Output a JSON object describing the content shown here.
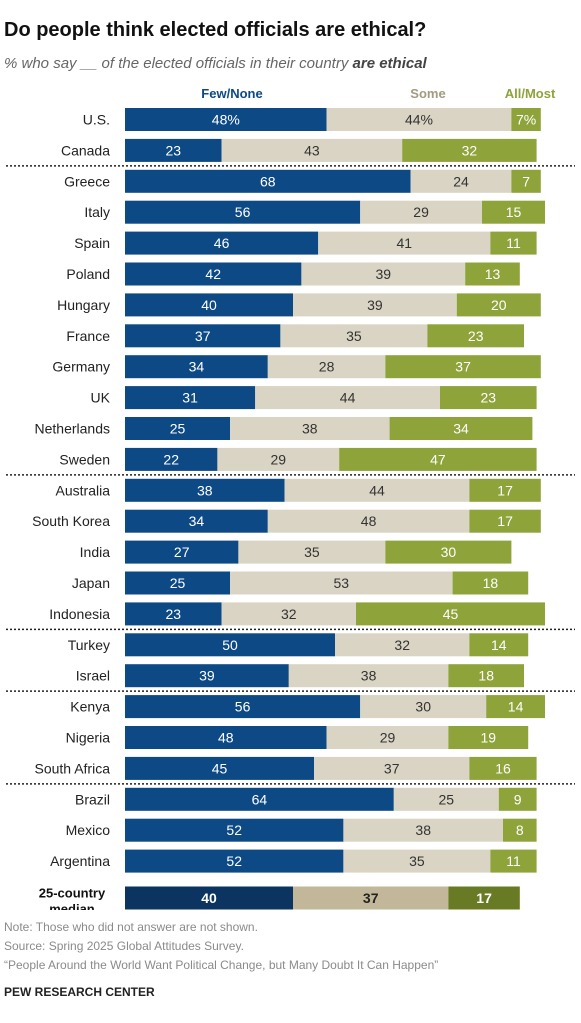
{
  "title": "Do people think elected officials are ethical?",
  "subtitle_pre": "% who say __ of the elected officials in their country ",
  "subtitle_em": "are ethical",
  "colors": {
    "few": "#0d4a85",
    "some": "#d9d4c3",
    "all": "#8ea33a",
    "few_median": "#0b3560",
    "some_median": "#c2b899",
    "all_median": "#687a24",
    "few_label": "#0d4a85",
    "some_label": "#a39a7f",
    "all_label": "#8ea33a"
  },
  "chart_data": {
    "type": "bar",
    "orientation": "horizontal",
    "stacked": true,
    "categories": [
      "U.S.",
      "Canada",
      "Greece",
      "Italy",
      "Spain",
      "Poland",
      "Hungary",
      "France",
      "Germany",
      "UK",
      "Netherlands",
      "Sweden",
      "Australia",
      "South Korea",
      "India",
      "Japan",
      "Indonesia",
      "Turkey",
      "Israel",
      "Kenya",
      "Nigeria",
      "South Africa",
      "Brazil",
      "Mexico",
      "Argentina"
    ],
    "series": [
      {
        "name": "Few/None",
        "values": [
          48,
          23,
          68,
          56,
          46,
          42,
          40,
          37,
          34,
          31,
          25,
          22,
          38,
          34,
          27,
          25,
          23,
          50,
          39,
          56,
          48,
          45,
          64,
          52,
          52
        ]
      },
      {
        "name": "Some",
        "values": [
          44,
          43,
          24,
          29,
          41,
          39,
          39,
          35,
          28,
          44,
          38,
          29,
          44,
          48,
          35,
          53,
          32,
          32,
          38,
          30,
          29,
          37,
          25,
          38,
          35
        ]
      },
      {
        "name": "All/Most",
        "values": [
          7,
          32,
          7,
          15,
          11,
          13,
          20,
          23,
          37,
          23,
          34,
          47,
          17,
          17,
          30,
          18,
          45,
          14,
          18,
          14,
          19,
          16,
          9,
          8,
          11
        ]
      }
    ],
    "percent_suffix_row": "U.S.",
    "group_breaks_after": [
      "Canada",
      "Sweden",
      "Indonesia",
      "Israel",
      "South Africa"
    ],
    "median": {
      "label_line1": "25-country",
      "label_line2": "median",
      "values": [
        40,
        37,
        17
      ]
    }
  },
  "notes": [
    "Note: Those who did not answer are not shown.",
    "Source: Spring 2025 Global Attitudes Survey.",
    "“People Around the World Want Political Change, but Many Doubt It Can Happen”"
  ],
  "org": "PEW RESEARCH CENTER"
}
